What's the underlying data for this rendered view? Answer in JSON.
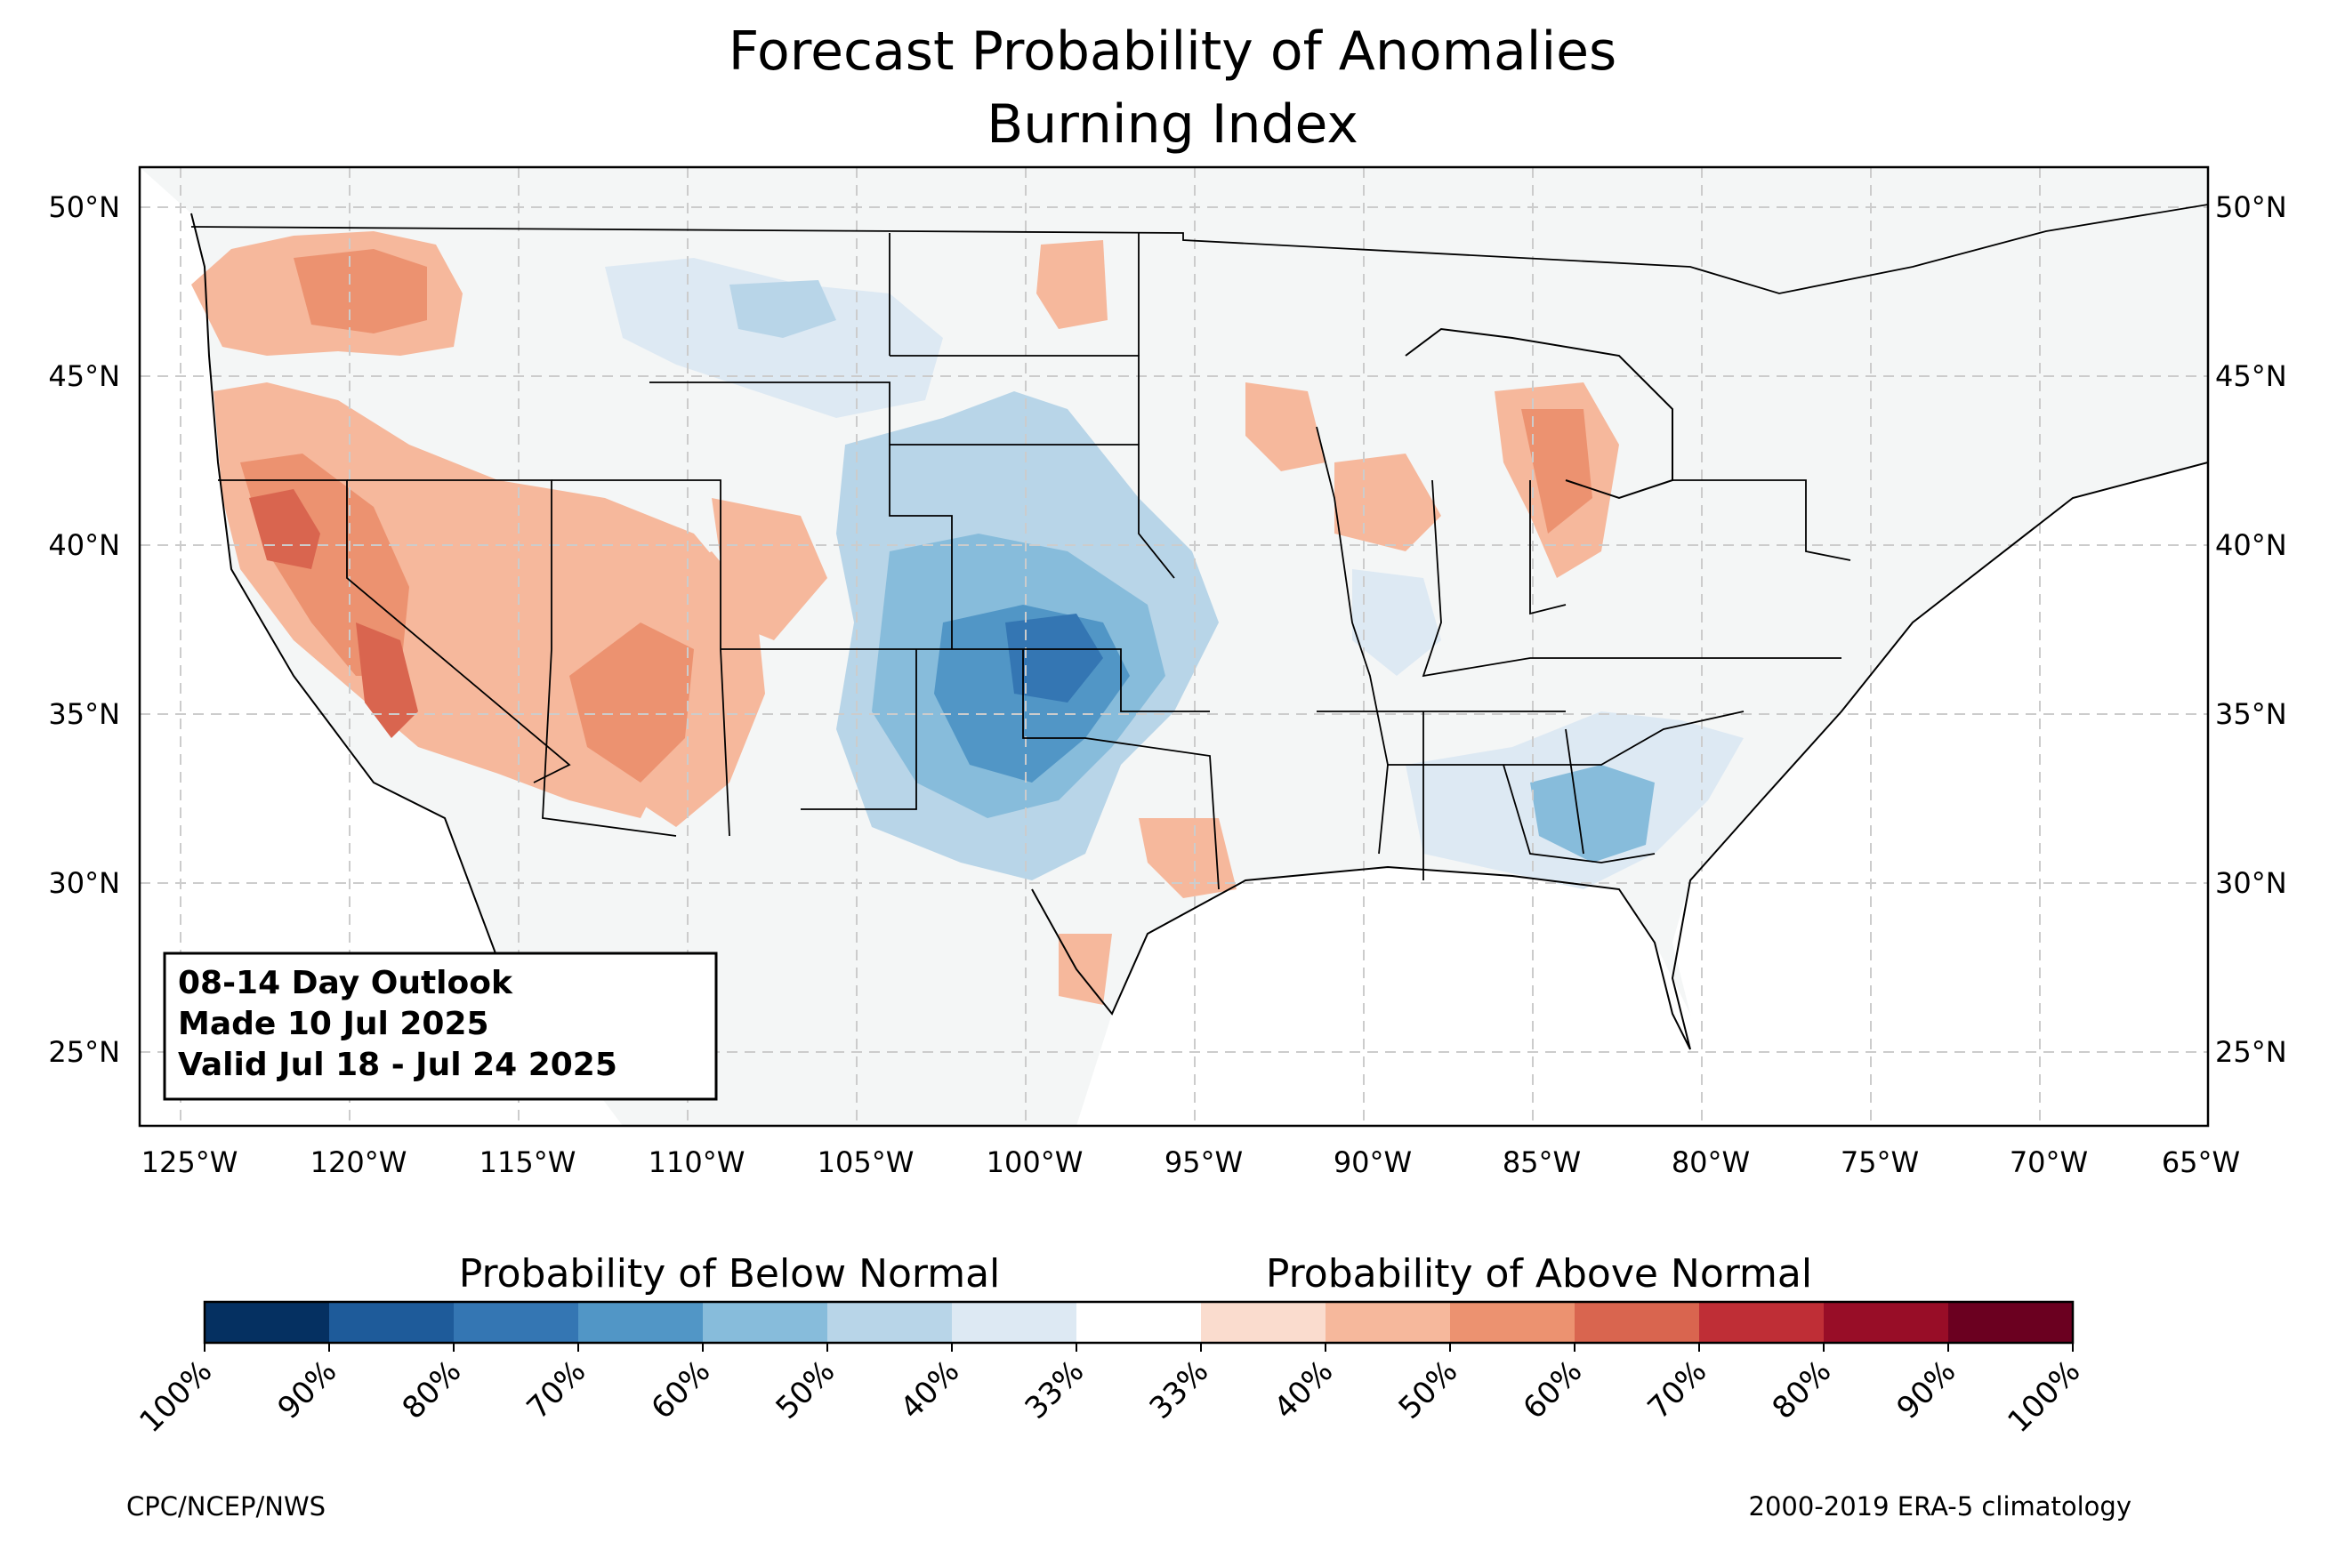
{
  "title_line1": "Forecast Probability of Anomalies",
  "title_line2": "Burning Index",
  "outlook": {
    "line1": "08-14 Day Outlook",
    "line2": " Made 10 Jul 2025",
    "line3": " Valid Jul 18 - Jul 24 2025"
  },
  "lat_labels": [
    "25°N",
    "30°N",
    "35°N",
    "40°N",
    "45°N",
    "50°N"
  ],
  "lon_labels": [
    "125°W",
    "120°W",
    "115°W",
    "110°W",
    "105°W",
    "100°W",
    "95°W",
    "90°W",
    "85°W",
    "80°W",
    "75°W",
    "70°W",
    "65°W"
  ],
  "colorbar": {
    "below_label": "Probability of Below Normal",
    "above_label": "Probability of Above Normal",
    "below_colors": [
      "#053061",
      "#1e5b9a",
      "#3476b3",
      "#5196c6",
      "#87bcdb",
      "#b8d5e8",
      "#dde9f3"
    ],
    "above_colors": [
      "#fadcce",
      "#f6b89c",
      "#ec9270",
      "#d9654f",
      "#bf2e36",
      "#980d27",
      "#6b0020"
    ],
    "tick_labels": [
      "100%",
      "90%",
      "80%",
      "70%",
      "60%",
      "50%",
      "40%",
      "33%",
      "33%",
      "40%",
      "50%",
      "60%",
      "70%",
      "80%",
      "90%",
      "100%"
    ]
  },
  "source": "CPC/NCEP/NWS",
  "climatology": "2000-2019 ERA-5 climatology"
}
